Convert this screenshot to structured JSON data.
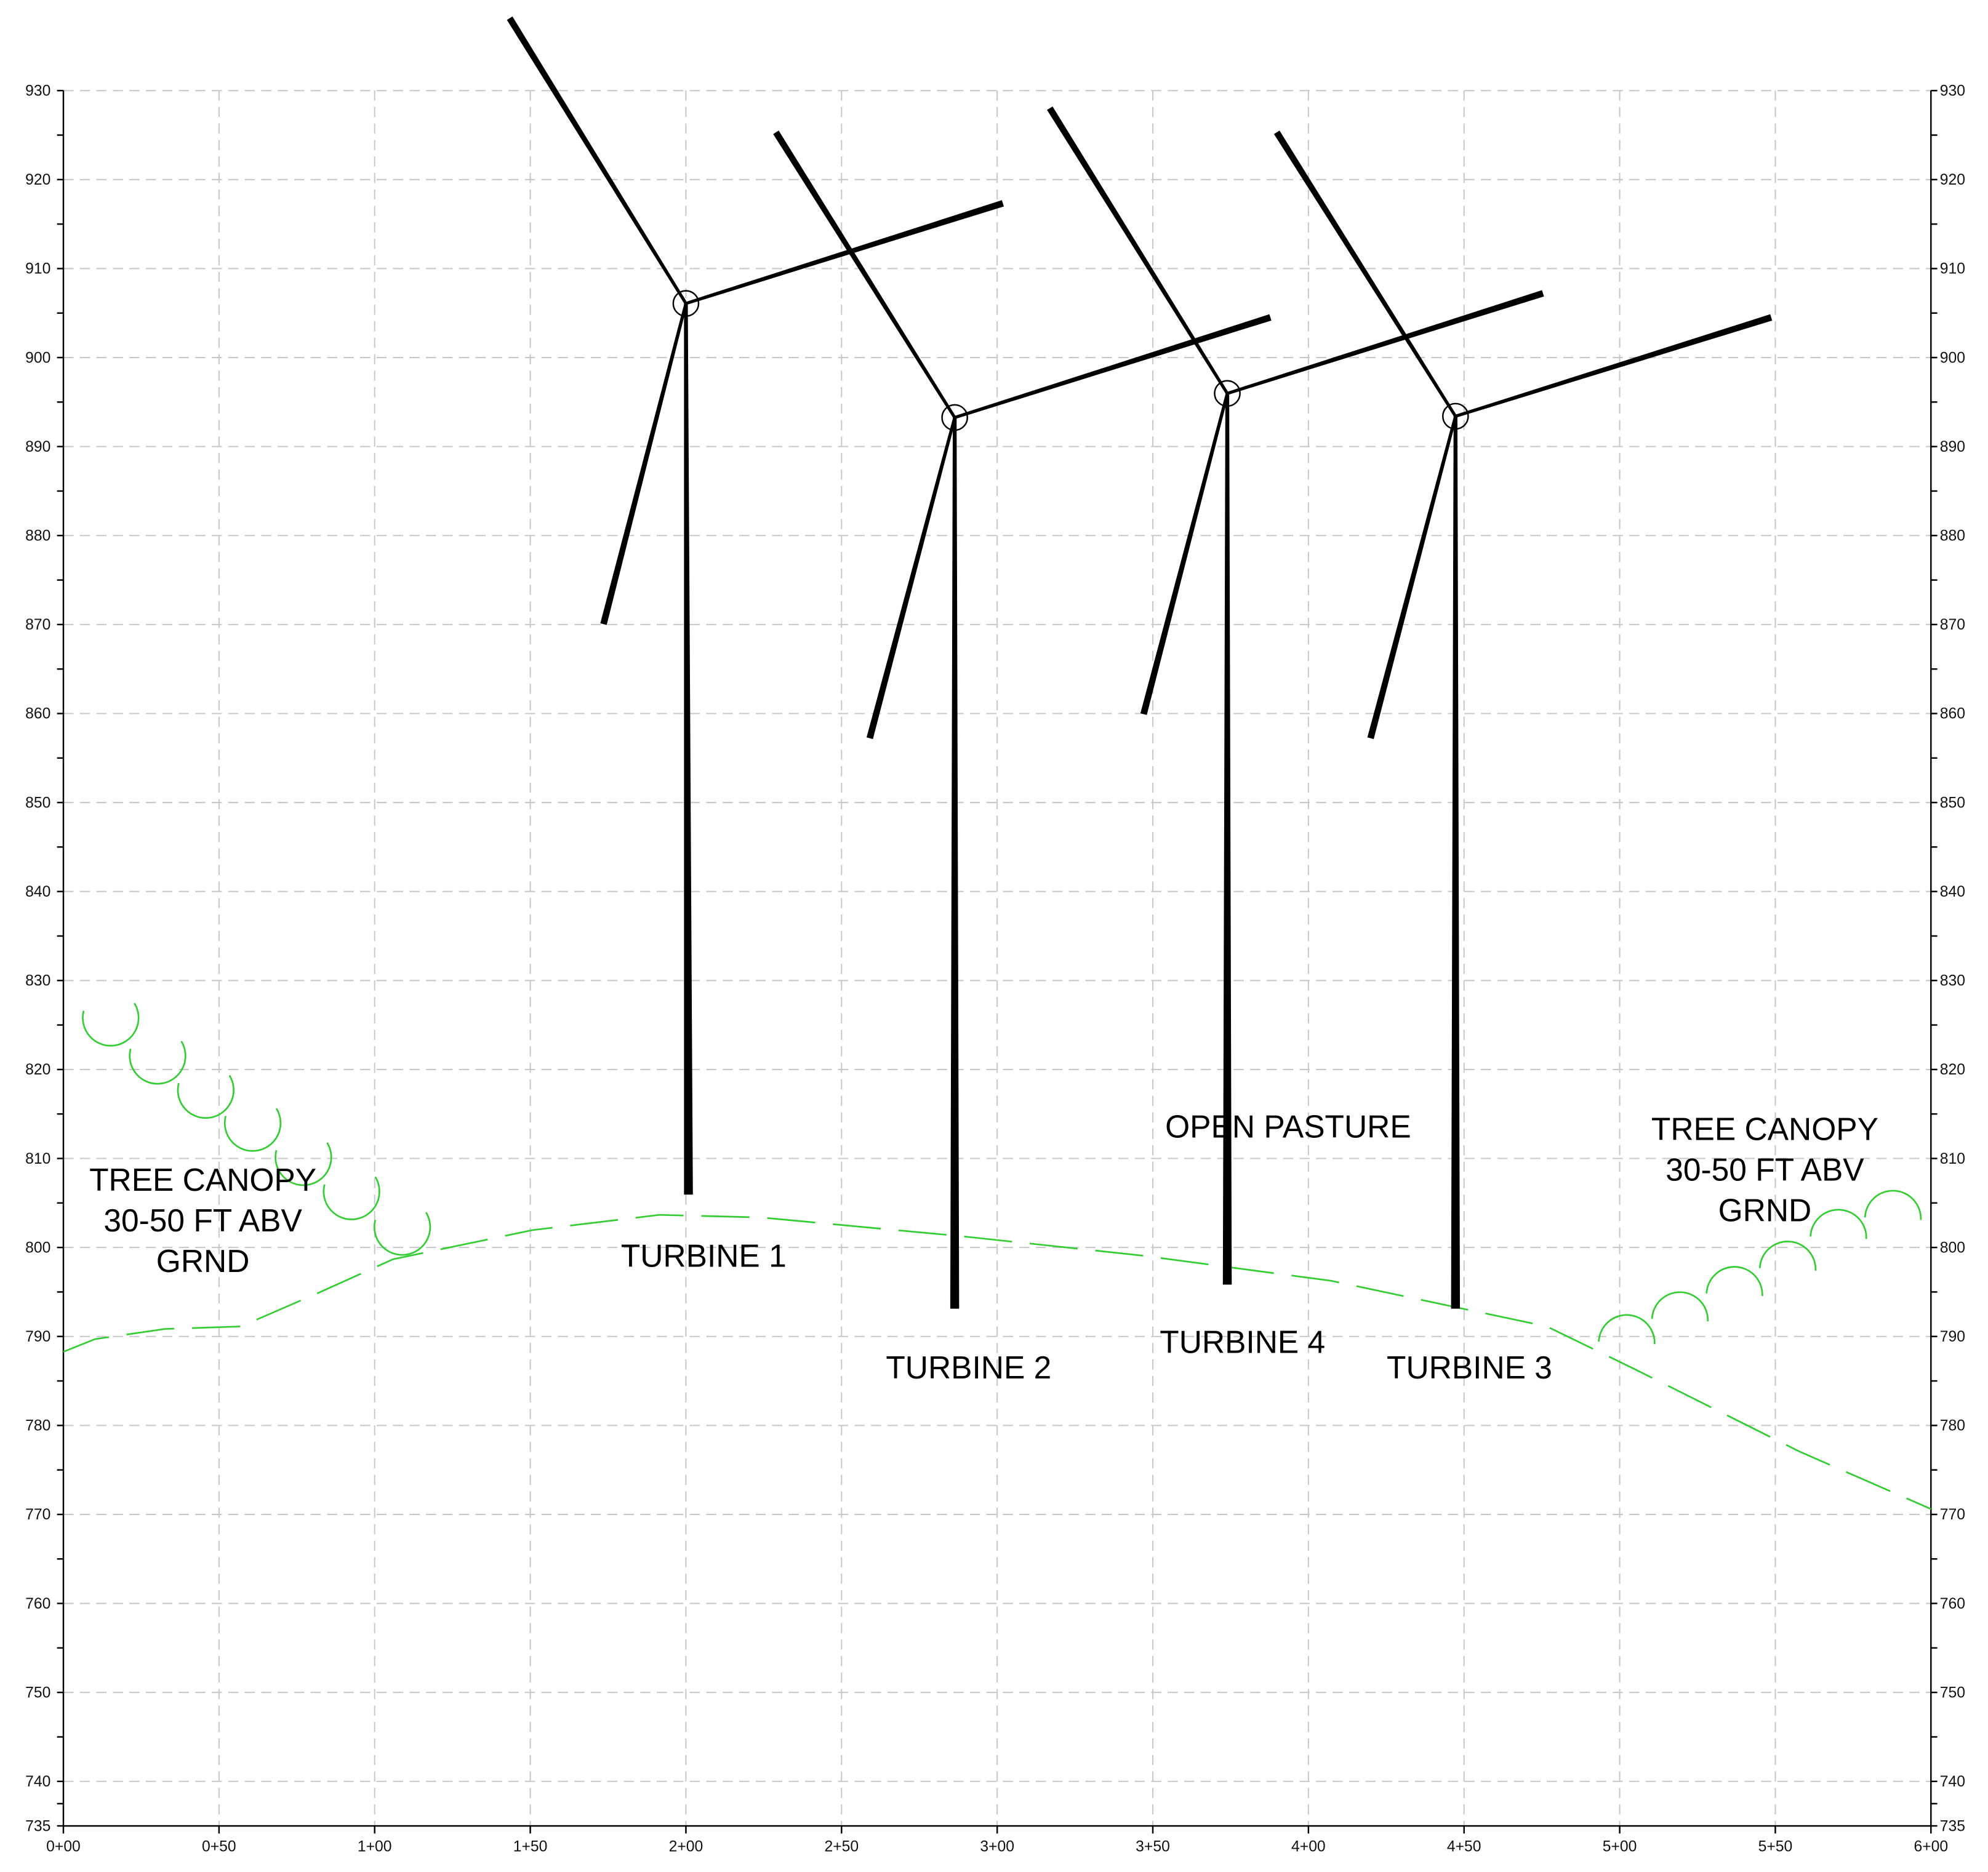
{
  "y_axis": {
    "ticks": [
      735,
      740,
      750,
      760,
      770,
      780,
      790,
      800,
      810,
      820,
      830,
      840,
      850,
      860,
      870,
      880,
      890,
      900,
      910,
      920,
      930
    ]
  },
  "x_axis": {
    "ticks": [
      "0+00",
      "0+50",
      "1+00",
      "1+50",
      "2+00",
      "2+50",
      "3+00",
      "3+50",
      "4+00",
      "4+50",
      "5+00",
      "5+50",
      "6+00"
    ]
  },
  "labels": [
    {
      "lines": [
        "TREE CANOPY",
        "30-50 FT ABV",
        "GRND"
      ]
    },
    {
      "lines": [
        "TURBINE 1"
      ]
    },
    {
      "lines": [
        "TURBINE 2"
      ]
    },
    {
      "lines": [
        "OPEN PASTURE"
      ]
    },
    {
      "lines": [
        "TURBINE 4"
      ]
    },
    {
      "lines": [
        "TURBINE 3"
      ]
    },
    {
      "lines": [
        "TREE CANOPY",
        "30-50 FT ABV",
        "GRND"
      ]
    }
  ]
}
